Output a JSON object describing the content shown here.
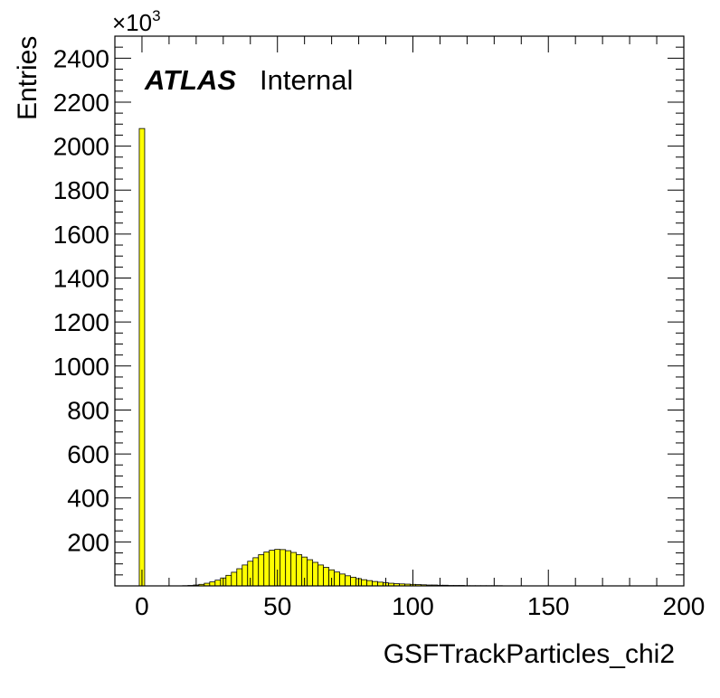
{
  "chart_data": {
    "type": "bar",
    "title": "",
    "xlabel": "GSFTrackParticles_chi2",
    "ylabel": "Entries",
    "y_multiplier_label": "×10",
    "y_multiplier_exp": "3",
    "experiment": "ATLAS",
    "status": "Internal",
    "xlim": [
      -10,
      200
    ],
    "ylim": [
      0,
      2500
    ],
    "x_ticks": [
      "0",
      "50",
      "100",
      "150",
      "200"
    ],
    "y_ticks": [
      "200",
      "400",
      "600",
      "800",
      "1000",
      "1200",
      "1400",
      "1600",
      "1800",
      "2000",
      "2200",
      "2400"
    ],
    "bin_width": 2,
    "bin_edges_start": -1,
    "values": [
      2080,
      0,
      0,
      0,
      0,
      0,
      0,
      0,
      1,
      2,
      4,
      7,
      12,
      18,
      26,
      36,
      48,
      62,
      78,
      95,
      112,
      128,
      142,
      154,
      162,
      166,
      165,
      160,
      152,
      142,
      131,
      119,
      107,
      95,
      84,
      73,
      63,
      54,
      46,
      39,
      33,
      28,
      24,
      20,
      17,
      14,
      12,
      10,
      9,
      8,
      7,
      6,
      5,
      4,
      4,
      3,
      3,
      2,
      2,
      2,
      1,
      1,
      1,
      1,
      1,
      1,
      1,
      0,
      0,
      0
    ],
    "fill_color": "#ffff00",
    "line_color": "#000000",
    "grid": false,
    "legend": "none"
  }
}
